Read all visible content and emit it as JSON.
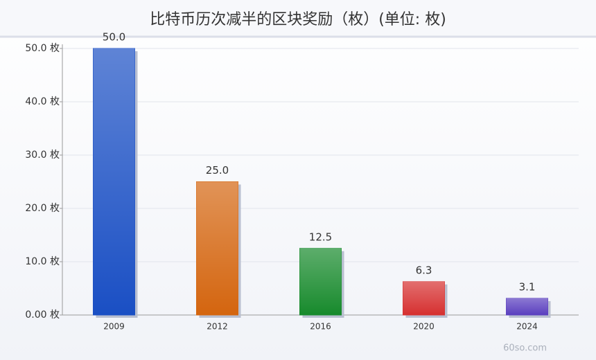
{
  "chart_data": {
    "type": "bar",
    "title": "比特币历次减半的区块奖励（枚）(单位: 枚)",
    "categories": [
      "2009",
      "2012",
      "2016",
      "2020",
      "2024"
    ],
    "values": [
      50,
      25,
      12.5,
      6.25,
      3.125
    ],
    "value_labels": [
      "50.0",
      "25.0",
      "12.5",
      "6.3",
      "3.1"
    ],
    "colors": [
      "#1a4fc4",
      "#d4650f",
      "#178a2c",
      "#d63030",
      "#5a3fbf"
    ],
    "ylim": [
      0,
      50
    ],
    "yticks": [
      {
        "value": 0,
        "label": "0.00 枚"
      },
      {
        "value": 10,
        "label": "10.0 枚"
      },
      {
        "value": 20,
        "label": "20.0 枚"
      },
      {
        "value": 30,
        "label": "30.0 枚"
      },
      {
        "value": 40,
        "label": "40.0 枚"
      },
      {
        "value": 50,
        "label": "50.0 枚"
      }
    ],
    "grid": true,
    "watermark": "60so.com"
  }
}
